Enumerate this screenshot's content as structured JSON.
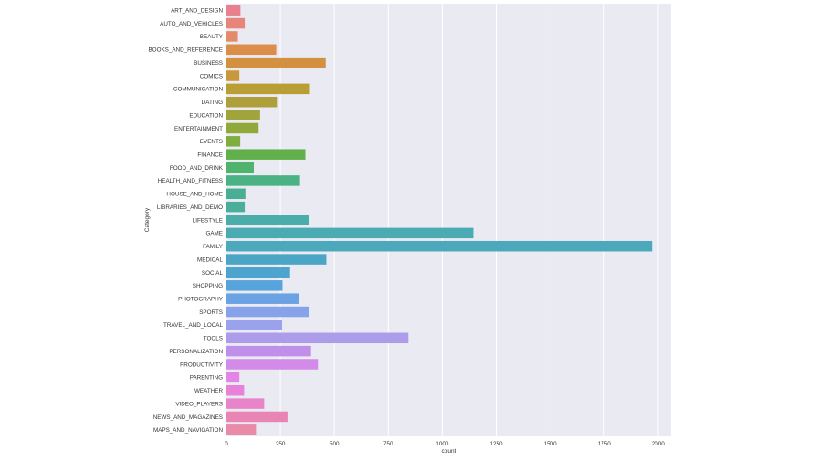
{
  "chart_data": {
    "type": "bar",
    "orientation": "horizontal",
    "xlabel": "count",
    "ylabel": "Category",
    "xlim": [
      0,
      2060
    ],
    "x_ticks": [
      0,
      250,
      500,
      750,
      1000,
      1250,
      1500,
      1750,
      2000
    ],
    "grid": true,
    "categories": [
      "ART_AND_DESIGN",
      "AUTO_AND_VEHICLES",
      "BEAUTY",
      "BOOKS_AND_REFERENCE",
      "BUSINESS",
      "COMICS",
      "COMMUNICATION",
      "DATING",
      "EDUCATION",
      "ENTERTAINMENT",
      "EVENTS",
      "FINANCE",
      "FOOD_AND_DRINK",
      "HEALTH_AND_FITNESS",
      "HOUSE_AND_HOME",
      "LIBRARIES_AND_DEMO",
      "LIFESTYLE",
      "GAME",
      "FAMILY",
      "MEDICAL",
      "SOCIAL",
      "SHOPPING",
      "PHOTOGRAPHY",
      "SPORTS",
      "TRAVEL_AND_LOCAL",
      "TOOLS",
      "PERSONALIZATION",
      "PRODUCTIVITY",
      "PARENTING",
      "WEATHER",
      "VIDEO_PLAYERS",
      "NEWS_AND_MAGAZINES",
      "MAPS_AND_NAVIGATION"
    ],
    "values": [
      65,
      85,
      53,
      231,
      460,
      60,
      387,
      234,
      156,
      149,
      64,
      366,
      127,
      341,
      88,
      85,
      382,
      1144,
      1972,
      463,
      295,
      260,
      335,
      384,
      258,
      843,
      392,
      424,
      60,
      82,
      175,
      283,
      137
    ],
    "colors": [
      "#e8818d",
      "#e7857b",
      "#e58a69",
      "#dd8d4a",
      "#d3913f",
      "#c99838",
      "#b99e36",
      "#ae9f3a",
      "#a1a43a",
      "#91a83a",
      "#80ad3d",
      "#62b04c",
      "#4fb26d",
      "#4bb383",
      "#4aaf92",
      "#4aae9a",
      "#4badaa",
      "#4aabb2",
      "#4ca9bb",
      "#4aa6c4",
      "#4da5cf",
      "#57a4dc",
      "#6aa2e4",
      "#85a2ea",
      "#99a2ea",
      "#ad9cea",
      "#c08fe9",
      "#d38ae8",
      "#e285e5",
      "#e882d8",
      "#e885ca",
      "#e985b5",
      "#e88aa8"
    ],
    "plot_background": "#eaeaf2",
    "grid_color": "#ffffff"
  }
}
